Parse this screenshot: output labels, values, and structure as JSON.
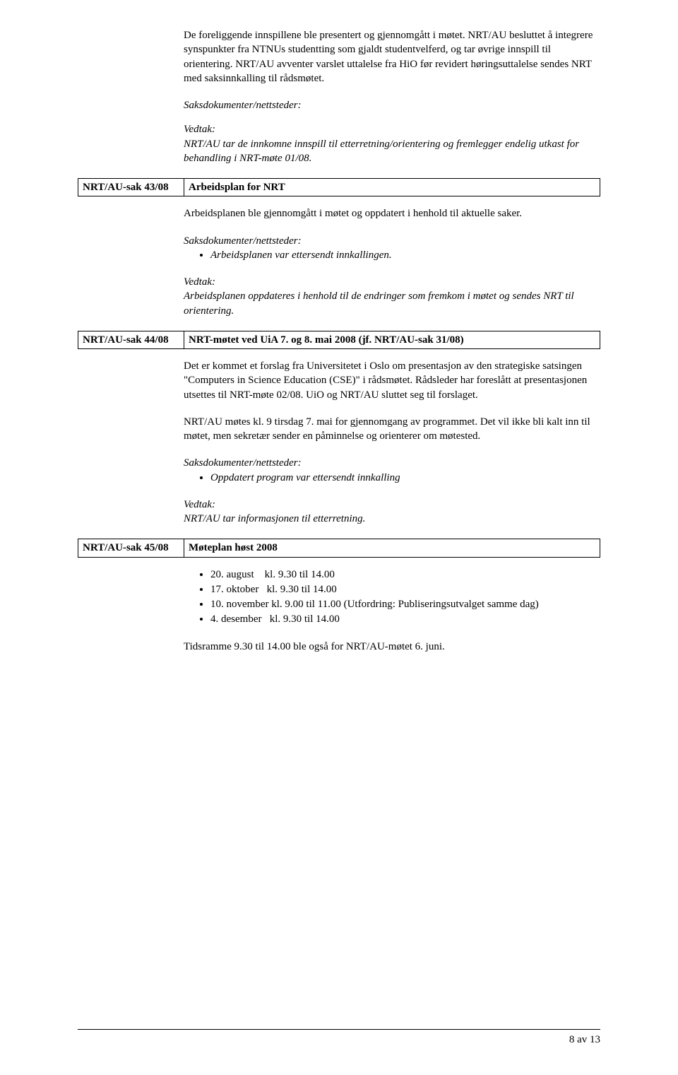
{
  "intro": {
    "p1": "De foreliggende innspillene ble presentert og gjennomgått i møtet. NRT/AU besluttet å integrere synspunkter fra NTNUs studentting som gjaldt studentvelferd, og tar øvrige innspill til orientering. NRT/AU avventer varslet uttalelse fra HiO før revidert høringsuttalelse sendes NRT med saksinnkalling til rådsmøtet.",
    "saks_label": "Saksdokumenter/nettsteder:",
    "vedtak_label": "Vedtak:",
    "vedtak_body": "NRT/AU tar de innkomne innspill til etterretning/orientering og fremlegger endelig utkast for behandling i NRT-møte 01/08."
  },
  "sak43": {
    "left": "NRT/AU-sak 43/08",
    "right": "Arbeidsplan for NRT",
    "p1": "Arbeidsplanen ble gjennomgått i møtet og oppdatert i henhold til aktuelle saker.",
    "saks_label": "Saksdokumenter/nettsteder:",
    "saks_item": "Arbeidsplanen var ettersendt innkallingen.",
    "vedtak_label": "Vedtak:",
    "vedtak_body": "Arbeidsplanen oppdateres i henhold til de endringer som fremkom i møtet og sendes NRT til orientering."
  },
  "sak44": {
    "left": "NRT/AU-sak 44/08",
    "right": "NRT-møtet ved UiA 7. og 8. mai 2008 (jf. NRT/AU-sak 31/08)",
    "p1": "Det er kommet et forslag fra Universitetet i Oslo om presentasjon av den strategiske satsingen \"Computers in Science Education (CSE)\" i rådsmøtet. Rådsleder har foreslått at presentasjonen utsettes til NRT-møte 02/08. UiO og NRT/AU sluttet seg til forslaget.",
    "p2": "NRT/AU møtes kl. 9 tirsdag 7. mai for gjennomgang av programmet. Det vil ikke bli kalt inn til møtet, men sekretær sender en påminnelse og orienterer om møtested.",
    "saks_label": "Saksdokumenter/nettsteder:",
    "saks_item": "Oppdatert program var ettersendt innkalling",
    "vedtak_label": "Vedtak:",
    "vedtak_body": "NRT/AU tar informasjonen til etterretning."
  },
  "sak45": {
    "left": "NRT/AU-sak 45/08",
    "right": "Møteplan høst 2008",
    "items": [
      "20. august    kl. 9.30 til 14.00",
      "17. oktober   kl. 9.30 til 14.00",
      "10. november kl. 9.00 til 11.00 (Utfordring: Publiseringsutvalget samme dag)",
      "4. desember   kl. 9.30 til 14.00"
    ],
    "tail": "Tidsramme 9.30 til 14.00 ble også for NRT/AU-møtet 6. juni."
  },
  "page_num": "8 av 13"
}
